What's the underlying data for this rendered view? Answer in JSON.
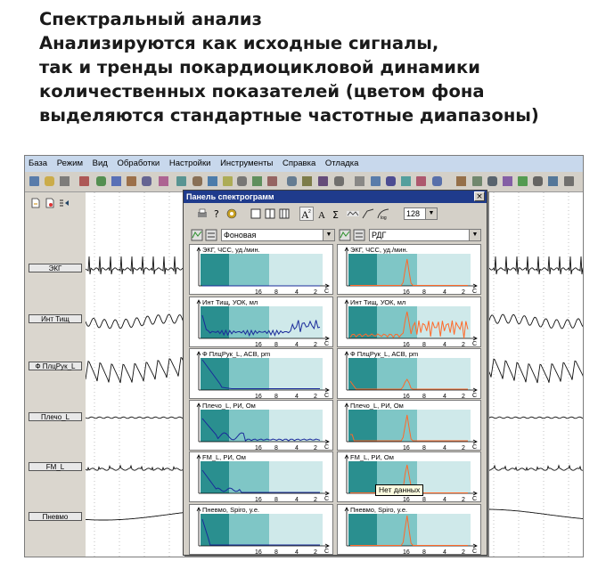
{
  "caption": {
    "lines": [
      "Спектральный анализ",
      "Анализируются как исходные сигналы,",
      "так и тренды покардиоцикловой динамики",
      "количественных показателей (цветом фона",
      "выделяются стандартные частотные диапазоны)"
    ]
  },
  "menu": [
    "База",
    "Режим",
    "Вид",
    "Обработки",
    "Настройки",
    "Инструменты",
    "Справка",
    "Отладка"
  ],
  "channels": [
    "ЭКГ",
    "Инт Тищ",
    "Ф ПлцРук_L",
    "Плечо_L",
    "FM_L",
    "Пневмо"
  ],
  "dialog": {
    "title": "Панель спектрограмм",
    "close": "×",
    "fft_size": "128",
    "left_mode": "Фоновая",
    "right_mode": "РДГ",
    "tooltip": "Нет данных"
  },
  "axis_ticks": [
    "16",
    "8",
    "4",
    "2"
  ],
  "axis_unit": "С",
  "spectra_left": [
    "ЭКГ, ЧСС, уд./мин.",
    "Инт Тищ, УОК, мл",
    "Ф ПлцРук_L, АСВ, pm",
    "Плечо_L, РИ, Ом",
    "FM_L, РИ, Ом",
    "Пневмо, Spiro, у.е."
  ],
  "spectra_right": [
    "ЭКГ, ЧСС, уд./мин.",
    "Инт Тищ, УОК, мл",
    "Ф ПлцРук_L, АСВ, pm",
    "Плечо_L, РИ, Ом",
    "FM_L, РИ, Ом",
    "Пневмо, Spiro, у.е."
  ],
  "colors": {
    "band_dark": "#2a8f8f",
    "band_mid": "#7fc6c6",
    "band_light": "#cfe9ea",
    "curve_left": "#1a2a9a",
    "curve_right": "#ff6a2a",
    "title_bar": "#1f3b8c"
  }
}
